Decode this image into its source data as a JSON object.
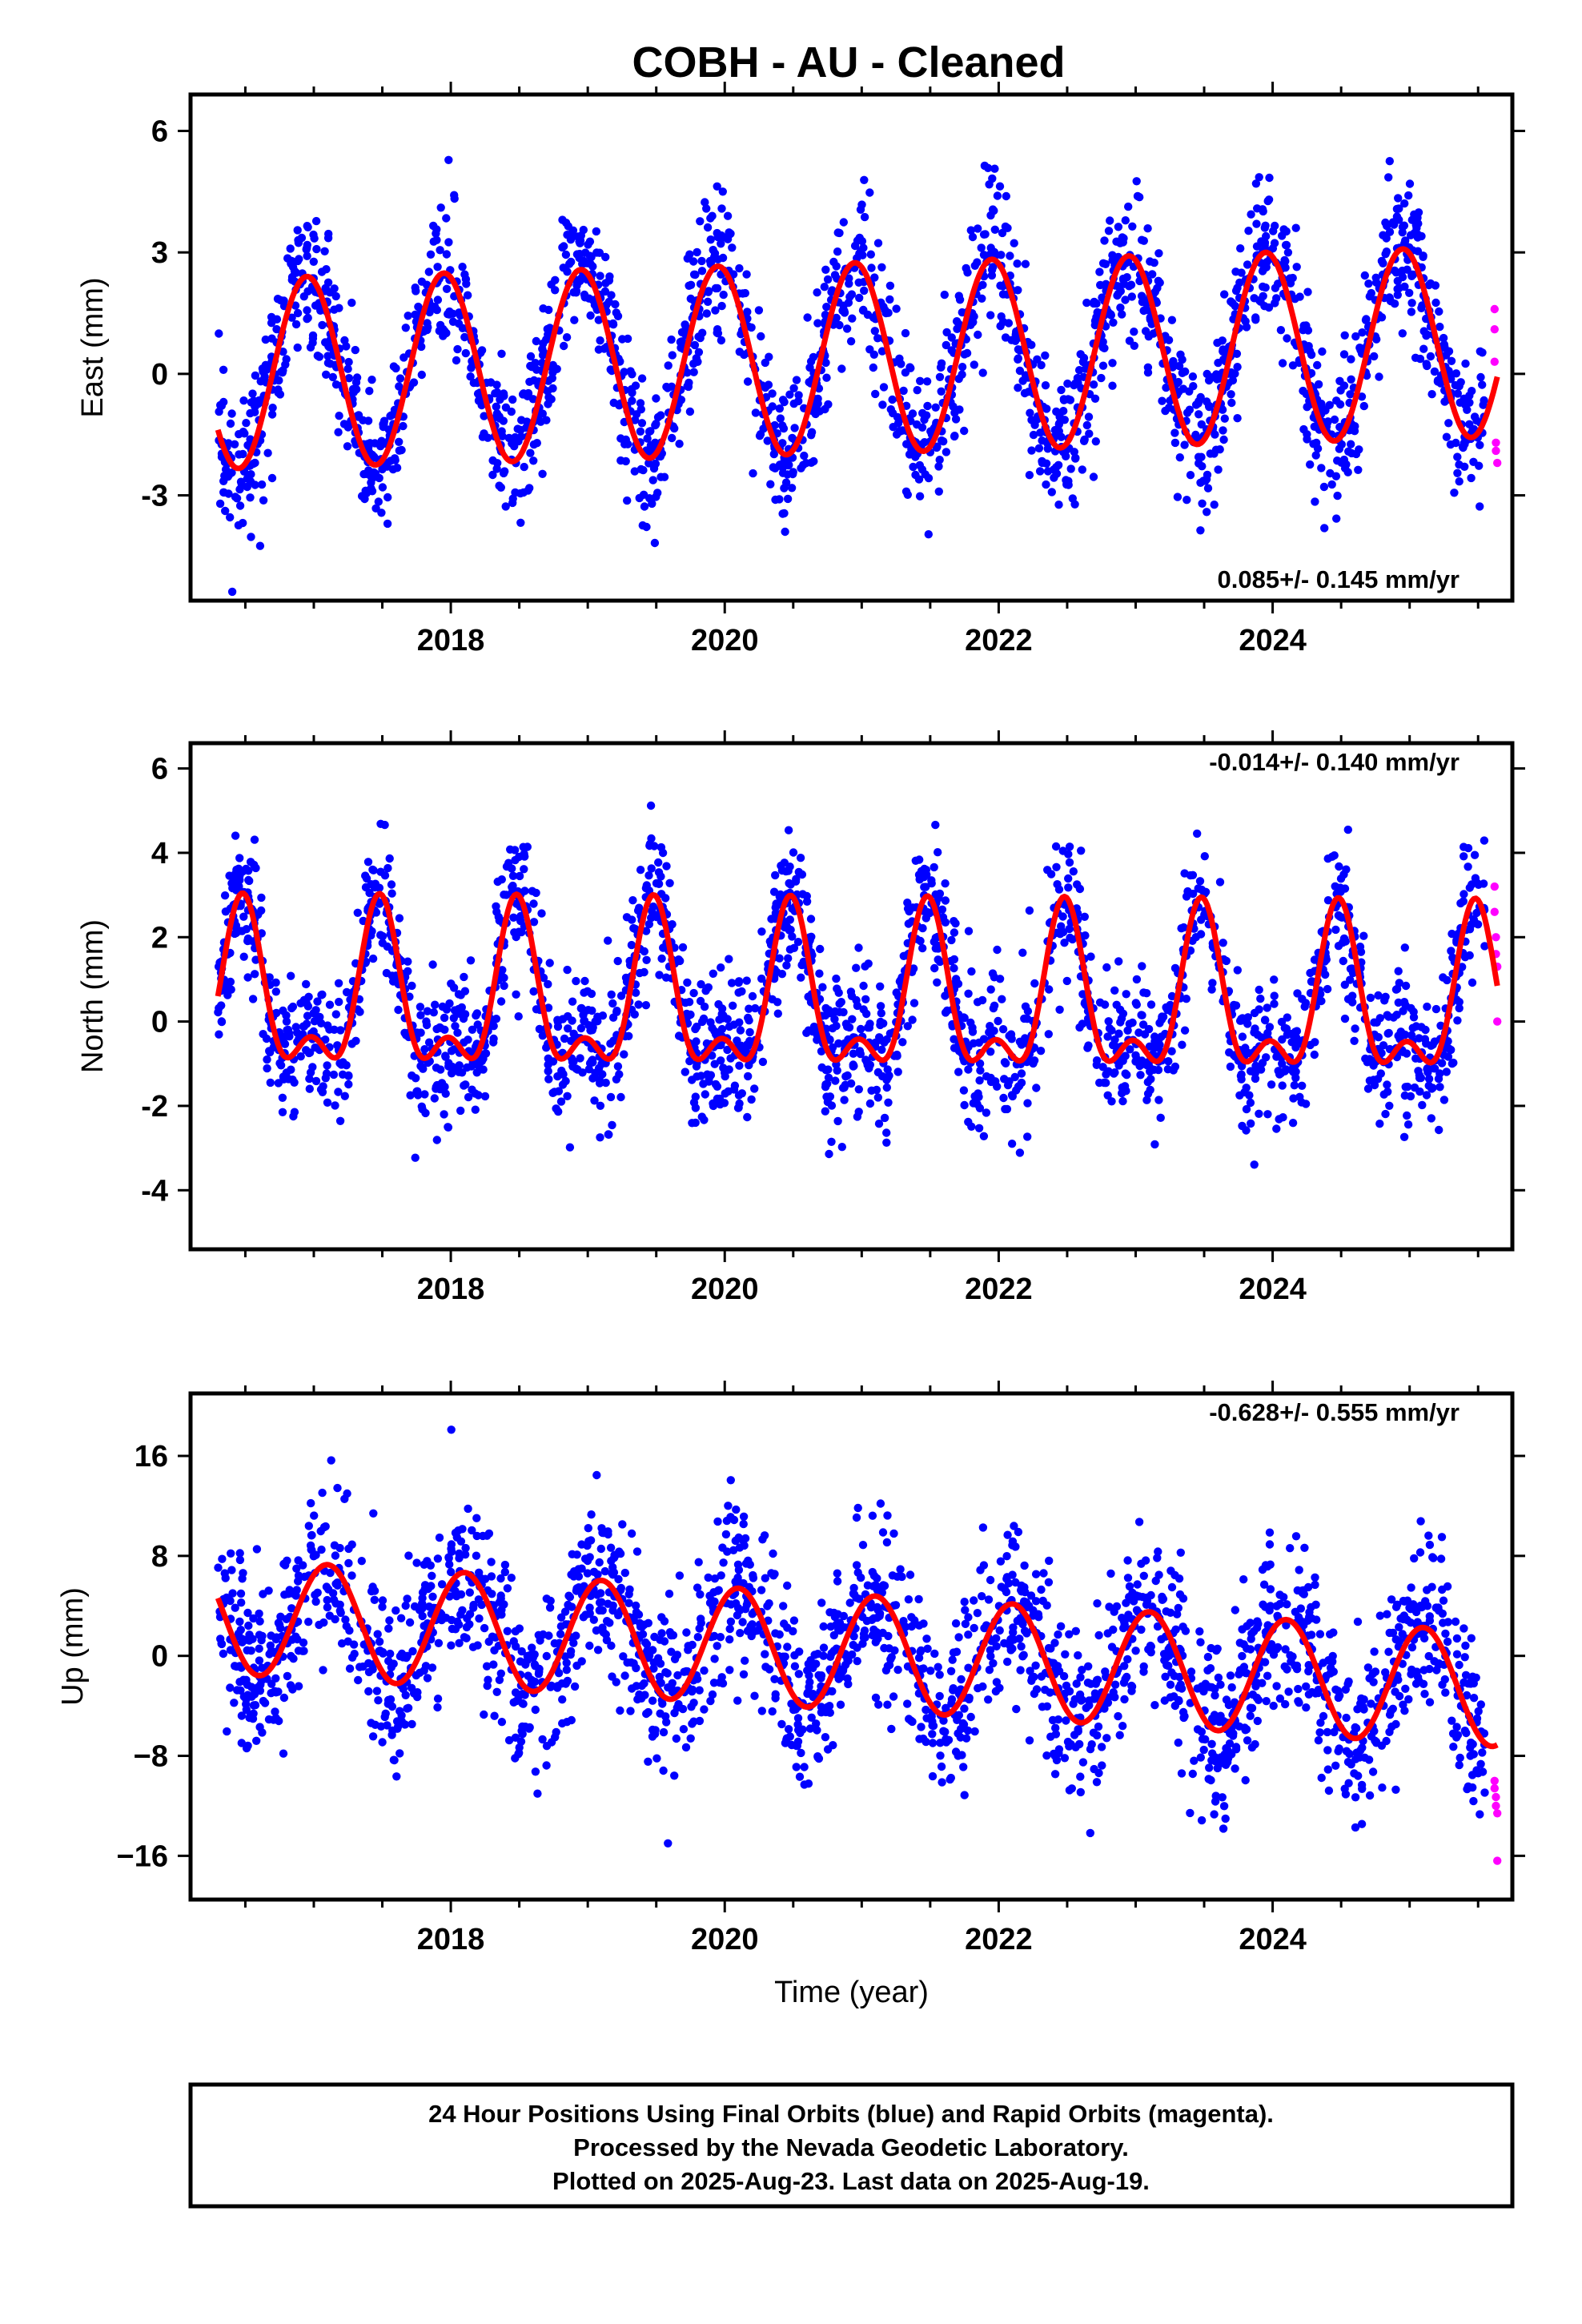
{
  "title": "COBH  - AU - Cleaned",
  "colors": {
    "final_orbits": "#0000ff",
    "rapid_orbits": "#ff00ff",
    "model": "#ff0000",
    "frame": "#000000"
  },
  "chart_data": [
    {
      "type": "scatter",
      "ylabel": "East (mm)",
      "xlabel": "",
      "xlim": [
        2016.1,
        2025.75
      ],
      "ylim": [
        -5.6,
        6.9
      ],
      "x_ticks": [
        2018,
        2020,
        2022,
        2024
      ],
      "x_tick_labels": [
        "2018",
        "2020",
        "2022",
        "2024"
      ],
      "y_ticks": [
        -3,
        0,
        3,
        6
      ],
      "y_tick_labels": [
        "-3",
        "0",
        "3",
        "6"
      ],
      "rate_text": "0.085+/- 0.145 mm/yr",
      "rate_position": "bottom-right",
      "series": [
        {
          "kind": "final",
          "x_range": [
            2016.3,
            2025.55
          ],
          "model": {
            "mean": 0.0,
            "trend": 0.085,
            "annual_amp": 2.35,
            "annual_peak": 2016.95,
            "semiannual_amp": 0.0,
            "semiannual_peak": 0.0
          },
          "scatter_sd": 0.9
        },
        {
          "kind": "rapid",
          "x": [
            2025.62,
            2025.62,
            2025.62,
            2025.63,
            2025.63,
            2025.64
          ],
          "y": [
            1.6,
            1.1,
            0.3,
            -1.7,
            -1.9,
            -2.2
          ]
        }
      ],
      "model_curve": {
        "x_range": [
          2016.3,
          2025.64
        ]
      }
    },
    {
      "type": "scatter",
      "ylabel": "North (mm)",
      "xlabel": "",
      "xlim": [
        2016.1,
        2025.75
      ],
      "ylim": [
        -5.4,
        6.6
      ],
      "x_ticks": [
        2018,
        2020,
        2022,
        2024
      ],
      "x_tick_labels": [
        "2018",
        "2020",
        "2022",
        "2024"
      ],
      "y_ticks": [
        -4,
        -2,
        0,
        2,
        4,
        6
      ],
      "y_tick_labels": [
        "-4",
        "-2",
        "0",
        "2",
        "4",
        "6"
      ],
      "rate_text": "-0.014+/- 0.140 mm/yr",
      "rate_position": "top-right",
      "series": [
        {
          "kind": "final",
          "x_range": [
            2016.3,
            2025.55
          ],
          "model": {
            "mean": 0.45,
            "trend": -0.014,
            "annual_amp": 1.7,
            "annual_peak": 2016.48,
            "semiannual_amp": 0.9,
            "semiannual_peak": 2016.48
          },
          "scatter_sd": 0.85
        },
        {
          "kind": "rapid",
          "x": [
            2025.62,
            2025.62,
            2025.63,
            2025.63,
            2025.64,
            2025.64
          ],
          "y": [
            3.2,
            2.6,
            2.0,
            1.6,
            1.3,
            0.0
          ]
        }
      ],
      "model_curve": {
        "x_range": [
          2016.3,
          2025.64
        ]
      }
    },
    {
      "type": "scatter",
      "ylabel": "Up (mm)",
      "xlabel": "Time (year)",
      "xlim": [
        2016.1,
        2025.75
      ],
      "ylim": [
        -19.5,
        21.0
      ],
      "x_ticks": [
        2018,
        2020,
        2022,
        2024
      ],
      "x_tick_labels": [
        "2018",
        "2020",
        "2022",
        "2024"
      ],
      "y_ticks": [
        -16,
        -8,
        0,
        8,
        16
      ],
      "y_tick_labels": [
        "−16",
        "−8",
        "0",
        "8",
        "16"
      ],
      "rate_text": "-0.628+/- 0.555 mm/yr",
      "rate_position": "top-right",
      "series": [
        {
          "kind": "final",
          "x_range": [
            2016.3,
            2025.55
          ],
          "model": {
            "mean": 3.2,
            "trend": -0.628,
            "annual_amp": 4.6,
            "annual_peak": 2016.1,
            "semiannual_amp": 0.0,
            "semiannual_peak": 0.0
          },
          "scatter_sd": 3.4
        },
        {
          "kind": "rapid",
          "x": [
            2025.62,
            2025.62,
            2025.63,
            2025.63,
            2025.64,
            2025.64
          ],
          "y": [
            -10.0,
            -10.6,
            -11.3,
            -12.0,
            -12.6,
            -16.4
          ]
        }
      ],
      "model_curve": {
        "x_range": [
          2016.3,
          2025.64
        ]
      }
    }
  ],
  "footer": {
    "line1": "24 Hour Positions Using Final Orbits (blue) and Rapid Orbits (magenta).",
    "line2": "Processed by the Nevada Geodetic Laboratory.",
    "line3": "Plotted on 2025-Aug-23. Last data on 2025-Aug-19."
  }
}
